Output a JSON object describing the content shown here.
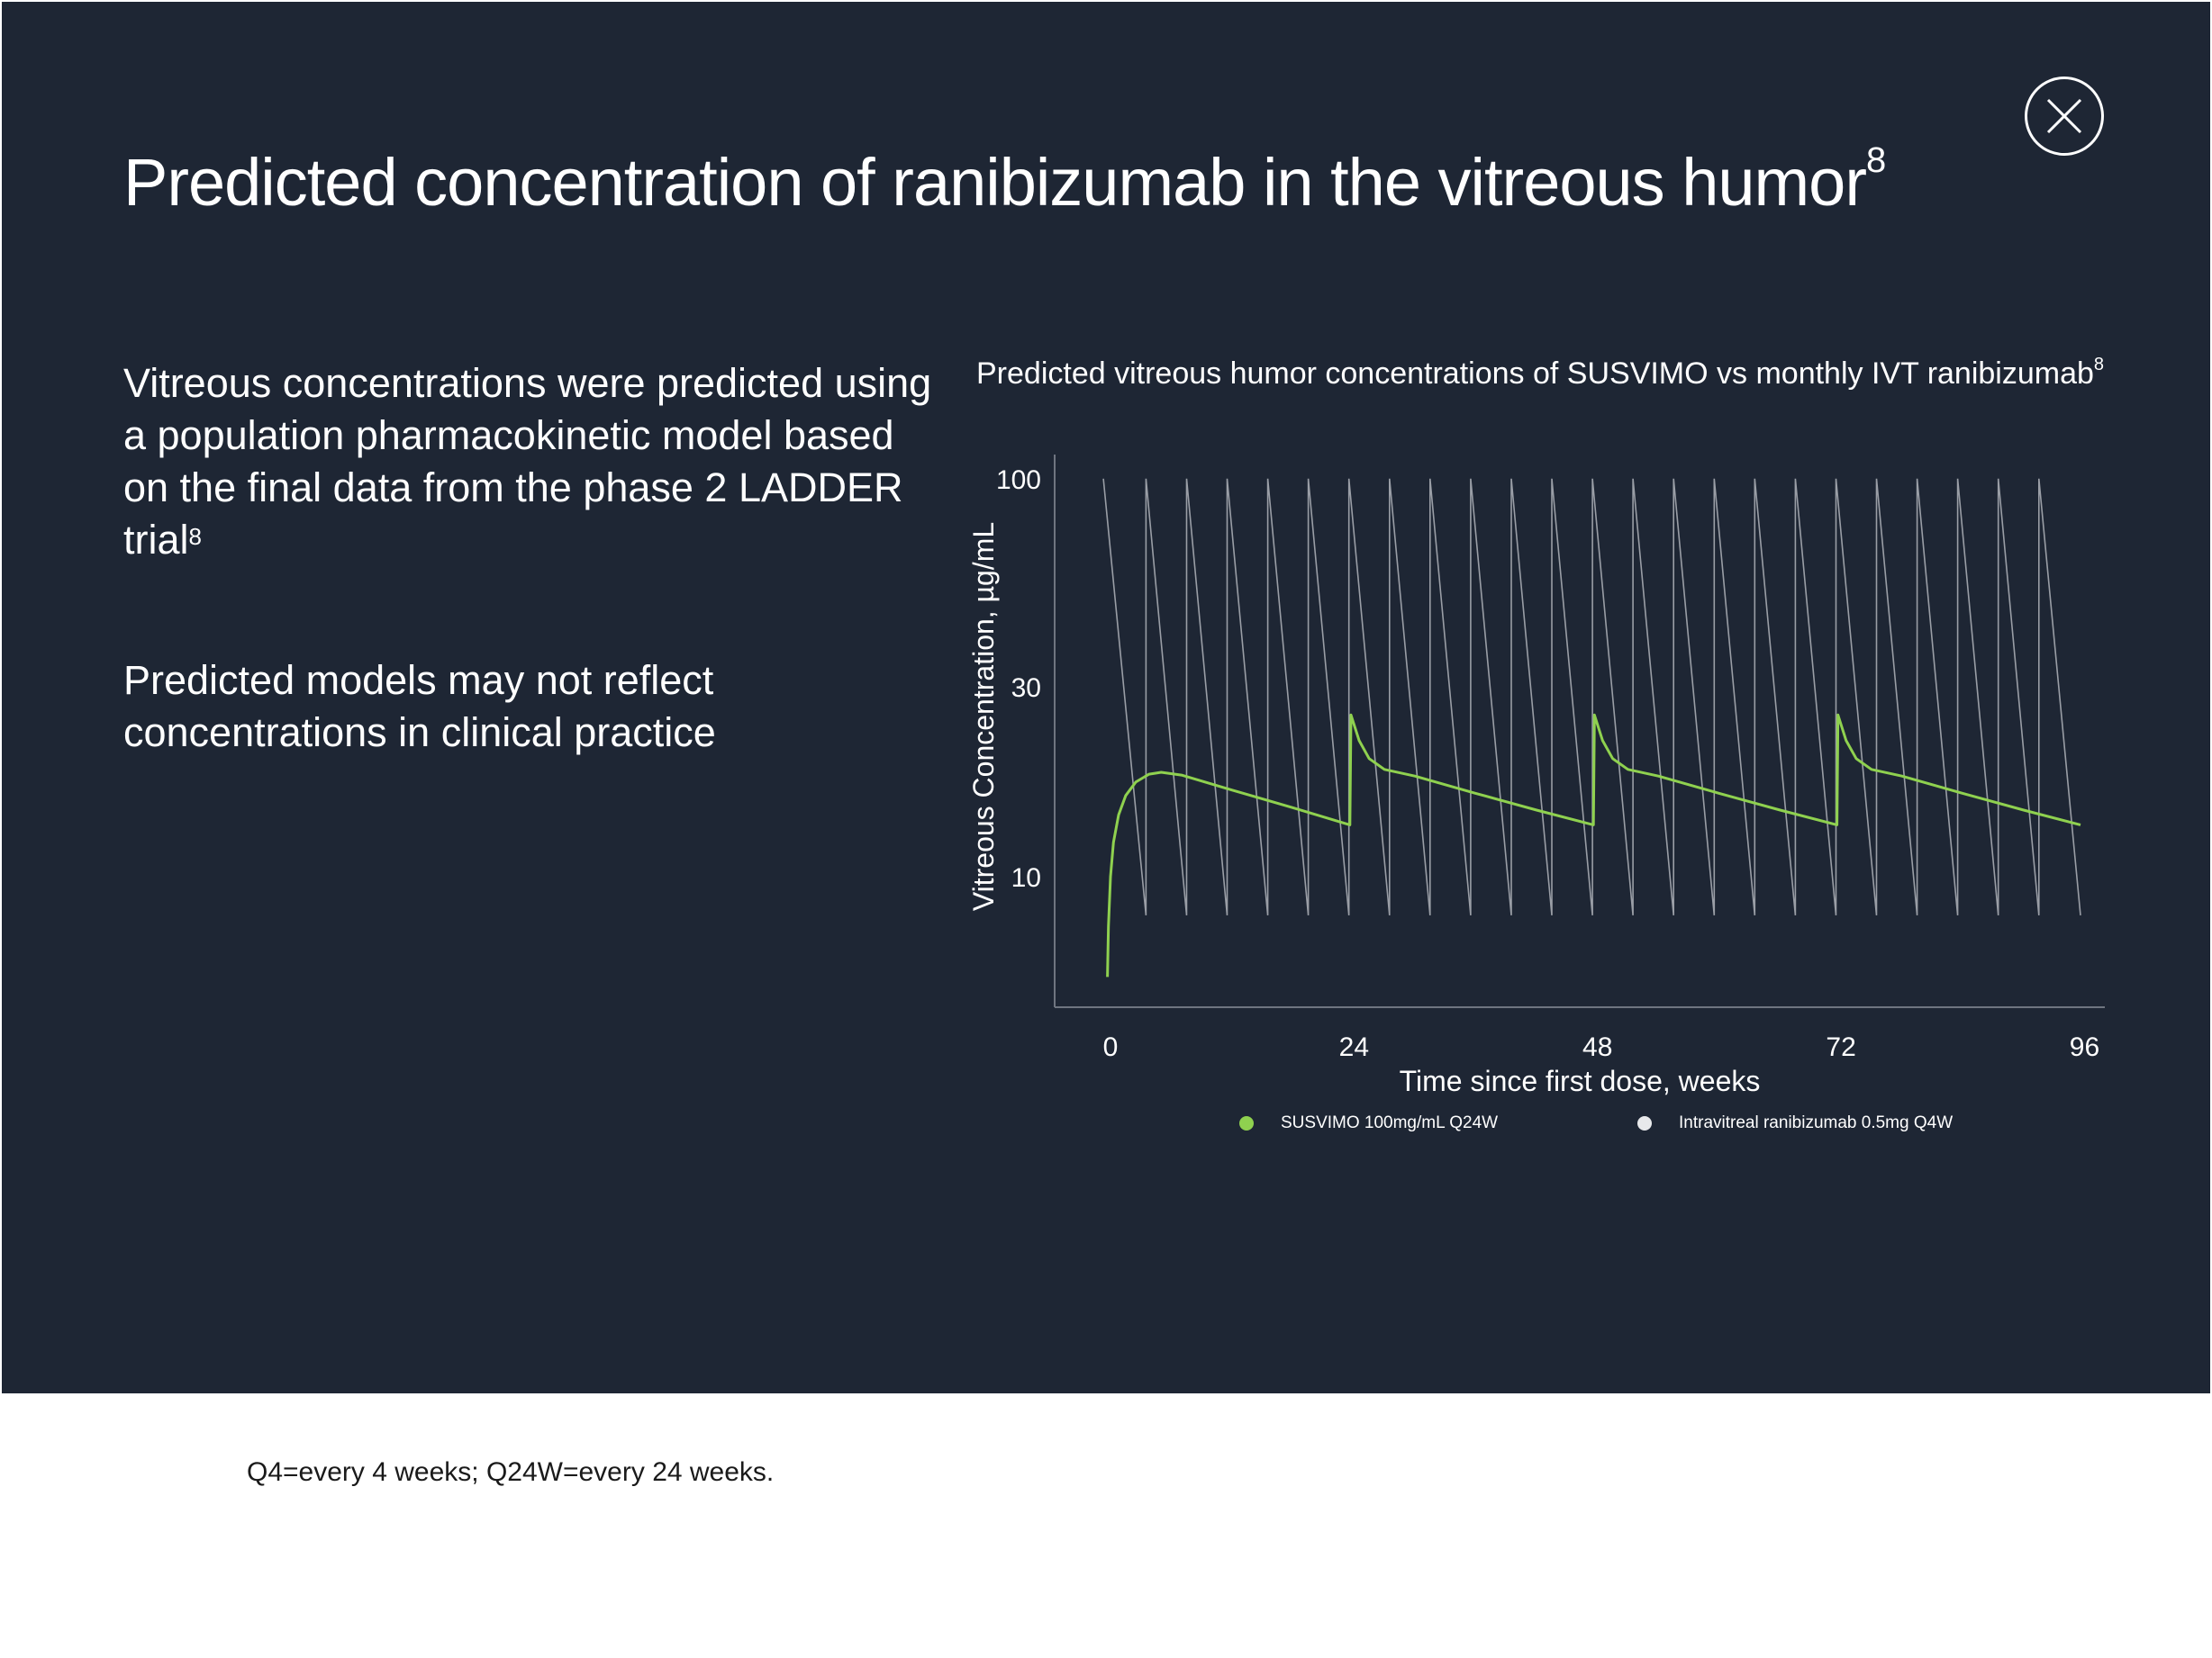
{
  "title": {
    "text": "Predicted concentration of ranibizumab in the vitreous humor",
    "ref": "8"
  },
  "body": {
    "para1": "Vitreous concentrations were predicted using a population pharmacokinetic model based on the final data from the phase 2 LADDER trial",
    "para1_ref": "8",
    "para2": "Predicted models may not reflect concentrations in clinical practice"
  },
  "close_button": {
    "icon": "close-icon"
  },
  "footnote": "Q4=every 4 weeks; Q24W=every 24 weeks.",
  "colors": {
    "background": "#1e2634",
    "susvimo": "#8fd14f",
    "ivt": "#9a9ea6",
    "text": "#ffffff"
  },
  "chart_data": {
    "type": "line",
    "title": "Predicted vitreous humor concentrations of SUSVIMO vs monthly IVT ranibizumab",
    "title_ref": "8",
    "xlabel": "Time since first dose, weeks",
    "ylabel": "Vitreous Concentration, µg/mL",
    "y_scale": "log",
    "xlim": [
      -5.5,
      98
    ],
    "ylim": [
      4.7,
      115
    ],
    "xticks": [
      0,
      24,
      48,
      72,
      96
    ],
    "yticks": [
      10,
      30,
      100
    ],
    "legend_position": "bottom",
    "series": [
      {
        "name": "SUSVIMO 100mg/mL Q24W",
        "color": "#8fd14f",
        "points": [
          [
            -0.3,
            5.6
          ],
          [
            -0.2,
            7.5
          ],
          [
            0,
            10
          ],
          [
            0.3,
            12.2
          ],
          [
            0.8,
            14.3
          ],
          [
            1.5,
            16.0
          ],
          [
            2.5,
            17.3
          ],
          [
            3.8,
            18.1
          ],
          [
            5.0,
            18.3
          ],
          [
            7,
            18.0
          ],
          [
            12,
            16.5
          ],
          [
            18,
            14.9
          ],
          [
            23.6,
            13.5
          ],
          [
            23.7,
            25.5
          ],
          [
            24.5,
            22.0
          ],
          [
            25.5,
            19.8
          ],
          [
            27,
            18.6
          ],
          [
            30,
            17.9
          ],
          [
            36,
            16.2
          ],
          [
            42,
            14.7
          ],
          [
            47.6,
            13.5
          ],
          [
            47.7,
            25.5
          ],
          [
            48.5,
            22.0
          ],
          [
            49.5,
            19.8
          ],
          [
            51,
            18.6
          ],
          [
            54,
            17.9
          ],
          [
            60,
            16.2
          ],
          [
            66,
            14.7
          ],
          [
            71.6,
            13.5
          ],
          [
            71.7,
            25.5
          ],
          [
            72.5,
            22.0
          ],
          [
            73.5,
            19.8
          ],
          [
            75,
            18.6
          ],
          [
            78,
            17.9
          ],
          [
            84,
            16.2
          ],
          [
            90,
            14.7
          ],
          [
            95.6,
            13.5
          ]
        ]
      },
      {
        "name": "Intravitreal ranibizumab 0.5mg Q4W",
        "color": "#9a9ea6",
        "dose_weeks": [
          -0.7,
          3.5,
          7.5,
          11.5,
          15.5,
          19.5,
          23.5,
          27.5,
          31.5,
          35.5,
          39.5,
          43.5,
          47.5,
          51.5,
          55.5,
          59.5,
          63.5,
          67.5,
          71.5,
          75.5,
          79.5,
          83.5,
          87.5,
          91.5
        ],
        "peak": 100,
        "trough": 8.0,
        "end_week": 95.6
      }
    ]
  }
}
